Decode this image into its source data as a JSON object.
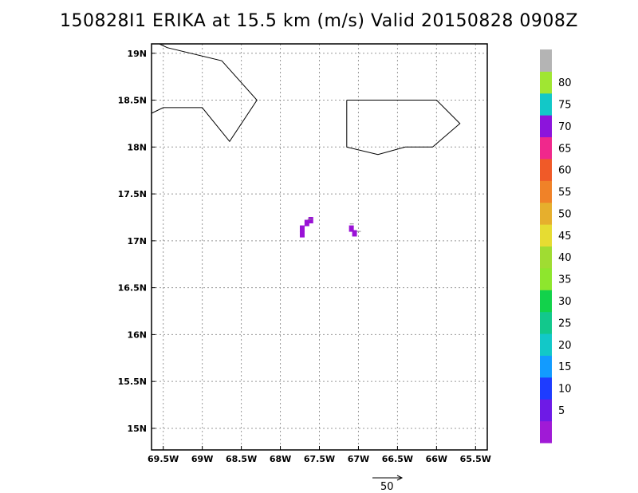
{
  "title": "150828I1 ERIKA at 15.5 km (m/s) Valid 20150828 0908Z",
  "map": {
    "lon_ticks": [
      {
        "lon": -69.5,
        "label": "69.5W"
      },
      {
        "lon": -69.0,
        "label": "69W"
      },
      {
        "lon": -68.5,
        "label": "68.5W"
      },
      {
        "lon": -68.0,
        "label": "68W"
      },
      {
        "lon": -67.5,
        "label": "67.5W"
      },
      {
        "lon": -67.0,
        "label": "67W"
      },
      {
        "lon": -66.5,
        "label": "66.5W"
      },
      {
        "lon": -66.0,
        "label": "66W"
      },
      {
        "lon": -65.5,
        "label": "65.5W"
      }
    ],
    "lat_ticks": [
      {
        "lat": 19.0,
        "label": "19N"
      },
      {
        "lat": 18.5,
        "label": "18.5N"
      },
      {
        "lat": 18.0,
        "label": "18N"
      },
      {
        "lat": 17.5,
        "label": "17.5N"
      },
      {
        "lat": 17.0,
        "label": "17N"
      },
      {
        "lat": 16.5,
        "label": "16.5N"
      },
      {
        "lat": 16.0,
        "label": "16N"
      },
      {
        "lat": 15.5,
        "label": "15.5N"
      },
      {
        "lat": 15.0,
        "label": "15N"
      }
    ],
    "lon_range": [
      -69.65,
      -65.35
    ],
    "lat_range": [
      14.77,
      19.1
    ],
    "grid": true,
    "coastlines": [
      [
        [
          -69.65,
          18.36
        ],
        [
          -69.5,
          18.42
        ],
        [
          -69.0,
          18.42
        ],
        [
          -68.65,
          18.06
        ],
        [
          -68.3,
          18.5
        ],
        [
          -68.75,
          18.92
        ],
        [
          -69.45,
          19.06
        ],
        [
          -69.55,
          19.1
        ]
      ],
      [
        [
          -67.15,
          18.5
        ],
        [
          -66.0,
          18.5
        ],
        [
          -65.7,
          18.25
        ],
        [
          -66.05,
          18.0
        ],
        [
          -66.4,
          18.0
        ],
        [
          -66.75,
          17.92
        ],
        [
          -67.15,
          18.0
        ],
        [
          -67.15,
          18.5
        ]
      ]
    ],
    "wind_cells": [
      {
        "lon": -67.72,
        "lat": 17.13,
        "value": 7
      },
      {
        "lon": -67.72,
        "lat": 17.07,
        "value": 7
      },
      {
        "lon": -67.66,
        "lat": 17.19,
        "value": 6
      },
      {
        "lon": -67.61,
        "lat": 17.22,
        "value": 6
      },
      {
        "lon": -67.09,
        "lat": 17.13,
        "value": 7
      },
      {
        "lon": -67.05,
        "lat": 17.08,
        "value": 6
      }
    ],
    "wind_cell_color": "#9a11d6",
    "vector_points": [
      {
        "lon": -67.63,
        "lat": 17.23
      },
      {
        "lon": -67.09,
        "lat": 17.18
      },
      {
        "lon": -67.0,
        "lat": 17.1
      }
    ]
  },
  "colorbar": {
    "labels": [
      "5",
      "10",
      "15",
      "20",
      "25",
      "30",
      "35",
      "40",
      "45",
      "50",
      "55",
      "60",
      "65",
      "70",
      "75",
      "80"
    ],
    "colors": [
      "#a01ad6",
      "#6e1ae6",
      "#1e3cff",
      "#129bff",
      "#12c8c8",
      "#12c88c",
      "#12d24b",
      "#8ee62d",
      "#a0dc32",
      "#e6dc32",
      "#e6af2d",
      "#f08228",
      "#f05a28",
      "#f0288c",
      "#8c14dc",
      "#12c8c8",
      "#a0e632",
      "#b4b4b4"
    ]
  },
  "vector_key": {
    "label": "50"
  }
}
